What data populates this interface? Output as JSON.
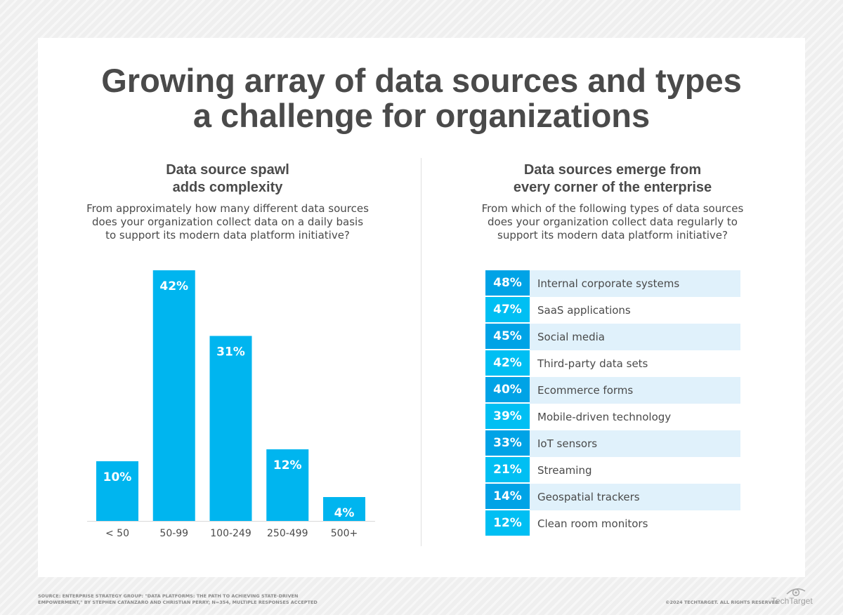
{
  "title_lines": [
    "Growing array of data sources and types",
    "a challenge for organizations"
  ],
  "colors": {
    "bar": "#00b5ef",
    "dark": "#00a3e6",
    "light": "#00bff3",
    "row_tint": "#e0f1fb",
    "text": "#4a4a4a"
  },
  "chart_data": [
    {
      "type": "bar",
      "title": "Data source spawl adds complexity",
      "title_lines": [
        "Data source spawl",
        "adds complexity"
      ],
      "question_lines": [
        "From approximately how many different data sources",
        "does your organization collect data on a daily basis",
        "to support its modern data platform initiative?"
      ],
      "categories": [
        "< 50",
        "50-99",
        "100-249",
        "250-499",
        "500+"
      ],
      "values": [
        10,
        42,
        31,
        12,
        4
      ],
      "labels": [
        "10%",
        "42%",
        "31%",
        "12%",
        "4%"
      ],
      "ylim": [
        0,
        42
      ],
      "grid": false
    },
    {
      "type": "table",
      "title": "Data sources emerge from every corner of the enterprise",
      "title_lines": [
        "Data sources emerge from",
        "every corner of the enterprise"
      ],
      "question_lines": [
        "From which of the following types of data sources",
        "does your organization collect data regularly to",
        "support its modern data platform initiative?"
      ],
      "rows": [
        {
          "value": "48%",
          "label": "Internal corporate systems"
        },
        {
          "value": "47%",
          "label": "SaaS applications"
        },
        {
          "value": "45%",
          "label": "Social media"
        },
        {
          "value": "42%",
          "label": "Third-party data sets"
        },
        {
          "value": "40%",
          "label": "Ecommerce forms"
        },
        {
          "value": "39%",
          "label": "Mobile-driven technology"
        },
        {
          "value": "33%",
          "label": "IoT sensors"
        },
        {
          "value": "21%",
          "label": "Streaming"
        },
        {
          "value": "14%",
          "label": "Geospatial trackers"
        },
        {
          "value": "12%",
          "label": "Clean room monitors"
        }
      ]
    }
  ],
  "footer": {
    "source_lines": [
      "SOURCE: ENTERPRISE STRATEGY GROUP: \"DATA PLATFORMS: THE PATH TO ACHIEVING STATE-DRIVEN",
      "EMPOWERMENT,\" BY STEPHEN CATANZARO AND CHRISTIAN PERRY; N=354, MULTIPLE RESPONSES ACCEPTED"
    ],
    "copyright": "©2024 TECHTARGET. ALL RIGHTS RESERVED",
    "logo": "TechTarget"
  }
}
